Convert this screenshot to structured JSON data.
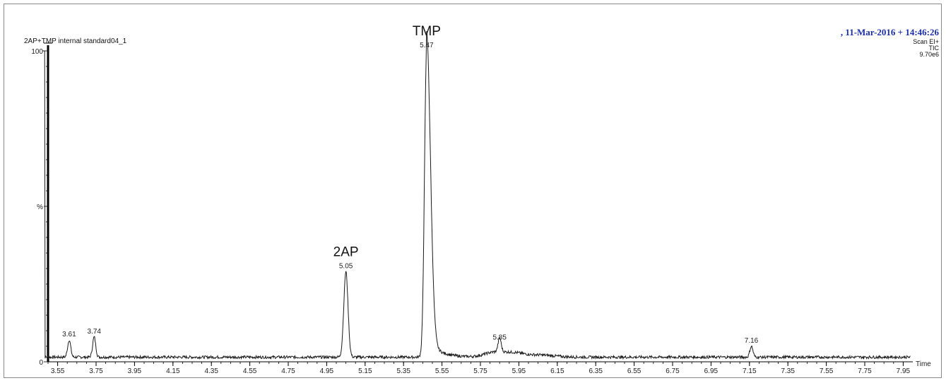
{
  "header": {
    "sample_name": "2AP+TMP internal standard04_1",
    "datetime": ", 11-Mar-2016 + 14:46:26",
    "scan_mode": "Scan EI+",
    "trace": "TIC",
    "max_intensity": "9.70e6"
  },
  "chart_data": {
    "type": "line",
    "title": "",
    "xlabel": "Time",
    "ylabel": "%",
    "xlim": [
      3.5,
      8.0
    ],
    "ylim": [
      0,
      100
    ],
    "x_ticks": [
      "3.55",
      "3.75",
      "3.95",
      "4.15",
      "4.35",
      "4.55",
      "4.75",
      "4.95",
      "5.15",
      "5.35",
      "5.55",
      "5.75",
      "5.95",
      "6.15",
      "6.35",
      "6.55",
      "6.75",
      "6.95",
      "7.15",
      "7.35",
      "7.55",
      "7.75",
      "7.95"
    ],
    "y_ticks": [
      "0",
      "%",
      "100"
    ],
    "peaks": [
      {
        "rt": 3.61,
        "label": "3.61",
        "height": 7
      },
      {
        "rt": 3.74,
        "label": "3.74",
        "height": 8
      },
      {
        "rt": 5.05,
        "label": "5.05",
        "height": 29
      },
      {
        "rt": 5.47,
        "label": "5.47",
        "height": 100
      },
      {
        "rt": 5.85,
        "label": "5.85",
        "height": 6
      },
      {
        "rt": 7.16,
        "label": "7.16",
        "height": 5
      }
    ],
    "annotations": [
      {
        "text": "TMP",
        "rt": 5.47
      },
      {
        "text": "2AP",
        "rt": 5.05
      }
    ],
    "baseline": 1.5,
    "colors": {
      "trace": "#1a1a1a",
      "axis": "#000000",
      "header_date": "#1a2fa8"
    }
  }
}
